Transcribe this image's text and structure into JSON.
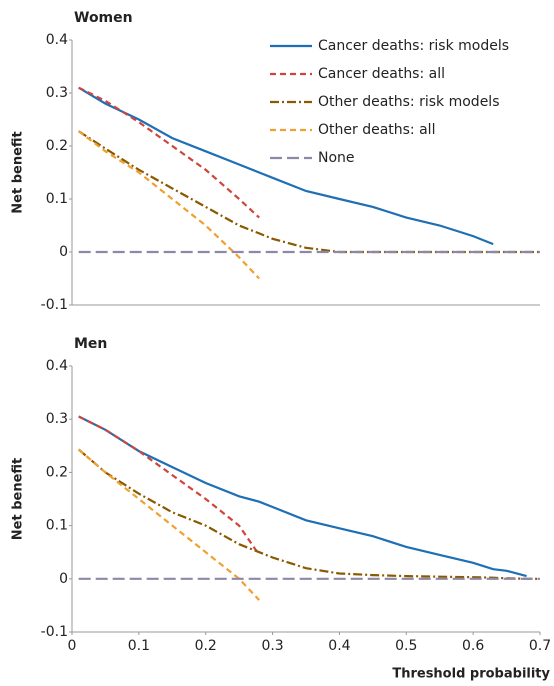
{
  "chart_data": [
    {
      "type": "line",
      "title": "Women",
      "y_label": "Net benefit",
      "x": [
        0.01,
        0.05,
        0.1,
        0.15,
        0.2,
        0.25,
        0.28,
        0.3,
        0.35,
        0.4,
        0.45,
        0.5,
        0.55,
        0.6,
        0.63,
        0.65,
        0.7
      ],
      "xlim": [
        0,
        0.7
      ],
      "ylim": [
        -0.1,
        0.4
      ],
      "yticks": [
        -0.1,
        0,
        0.1,
        0.2,
        0.3,
        0.4
      ],
      "legend": "upper right",
      "series": [
        {
          "name": "Cancer deaths: risk models",
          "color": "#1f6fb5",
          "style": "solid",
          "values": [
            0.31,
            0.28,
            0.25,
            0.215,
            0.19,
            0.165,
            0.15,
            0.14,
            0.115,
            0.1,
            0.085,
            0.065,
            0.05,
            0.03,
            0.015,
            null,
            null
          ]
        },
        {
          "name": "Cancer deaths: all",
          "color": "#d0453b",
          "style": "dashed",
          "values": [
            0.31,
            0.285,
            0.245,
            0.2,
            0.155,
            0.1,
            0.065,
            null,
            null,
            null,
            null,
            null,
            null,
            null,
            null,
            null,
            null
          ]
        },
        {
          "name": "Other deaths: risk models",
          "color": "#8a5a00",
          "style": "dashdot",
          "values": [
            0.228,
            0.195,
            0.155,
            0.12,
            0.085,
            0.05,
            0.035,
            0.025,
            0.008,
            0,
            0,
            0,
            0,
            0,
            0,
            0,
            0
          ]
        },
        {
          "name": "Other deaths: all",
          "color": "#f0a030",
          "style": "dashed",
          "values": [
            0.228,
            0.19,
            0.15,
            0.1,
            0.05,
            -0.01,
            -0.05,
            null,
            null,
            null,
            null,
            null,
            null,
            null,
            null,
            null,
            null
          ]
        },
        {
          "name": "None",
          "color": "#8e88a8",
          "style": "longdash",
          "values": [
            0,
            0,
            0,
            0,
            0,
            0,
            0,
            0,
            0,
            0,
            0,
            0,
            0,
            0,
            0,
            0,
            0
          ]
        }
      ]
    },
    {
      "type": "line",
      "title": "Men",
      "y_label": "Net benefit",
      "x_label": "Threshold probability",
      "x": [
        0.01,
        0.05,
        0.1,
        0.15,
        0.2,
        0.25,
        0.28,
        0.3,
        0.35,
        0.4,
        0.45,
        0.5,
        0.55,
        0.6,
        0.63,
        0.65,
        0.68,
        0.7
      ],
      "xlim": [
        0,
        0.7
      ],
      "xticks": [
        0,
        0.1,
        0.2,
        0.3,
        0.4,
        0.5,
        0.6,
        0.7
      ],
      "ylim": [
        -0.1,
        0.4
      ],
      "yticks": [
        -0.1,
        0,
        0.1,
        0.2,
        0.3,
        0.4
      ],
      "series": [
        {
          "color": "#1f6fb5",
          "style": "solid",
          "values": [
            0.305,
            0.28,
            0.24,
            0.21,
            0.18,
            0.155,
            0.145,
            0.135,
            0.11,
            0.095,
            0.08,
            0.06,
            0.045,
            0.03,
            0.018,
            0.015,
            0.005,
            null
          ]
        },
        {
          "color": "#d0453b",
          "style": "dashed",
          "values": [
            0.305,
            0.28,
            0.24,
            0.195,
            0.15,
            0.1,
            0.045,
            null,
            null,
            null,
            null,
            null,
            null,
            null,
            null,
            null,
            null,
            null
          ]
        },
        {
          "color": "#8a5a00",
          "style": "dashdot",
          "values": [
            0.243,
            0.2,
            0.16,
            0.125,
            0.1,
            0.065,
            0.05,
            0.04,
            0.02,
            0.01,
            0.007,
            0.005,
            0.004,
            0.003,
            0.002,
            0.001,
            0,
            0
          ]
        },
        {
          "color": "#f0a030",
          "style": "dashed",
          "values": [
            0.243,
            0.2,
            0.15,
            0.1,
            0.05,
            0,
            -0.04,
            null,
            null,
            null,
            null,
            null,
            null,
            null,
            null,
            null,
            null,
            null
          ]
        },
        {
          "color": "#8e88a8",
          "style": "longdash",
          "values": [
            0,
            0,
            0,
            0,
            0,
            0,
            0,
            0,
            0,
            0,
            0,
            0,
            0,
            0,
            0,
            0,
            0,
            0
          ]
        }
      ]
    }
  ]
}
